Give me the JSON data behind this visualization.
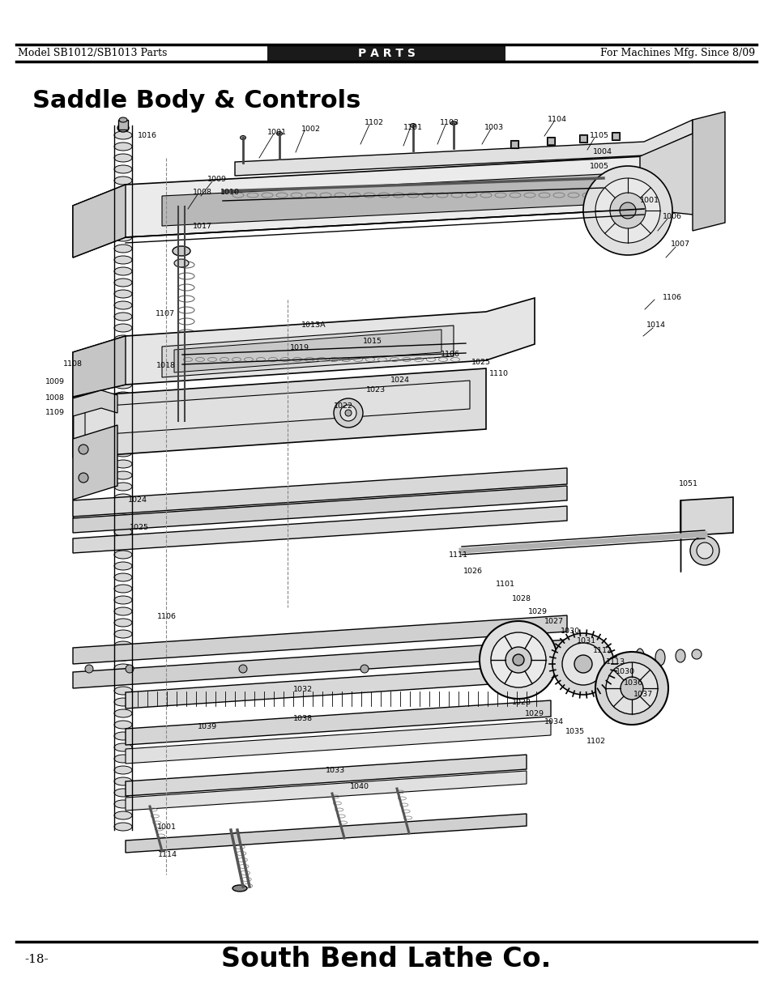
{
  "page_title": "Saddle Body & Controls",
  "header_left": "Model SB1012/SB1013 Parts",
  "header_center": "P A R T S",
  "header_right": "For Machines Mfg. Since 8/09",
  "footer_left": "-18-",
  "footer_center": "South Bend Lathe Co.",
  "bg_color": "#ffffff",
  "header_bg": "#1a1a1a",
  "header_text_color": "#ffffff",
  "body_text_color": "#000000",
  "title_fontsize": 22,
  "header_fontsize": 9,
  "footer_fontsize": 11,
  "footer_brand_fontsize": 24
}
